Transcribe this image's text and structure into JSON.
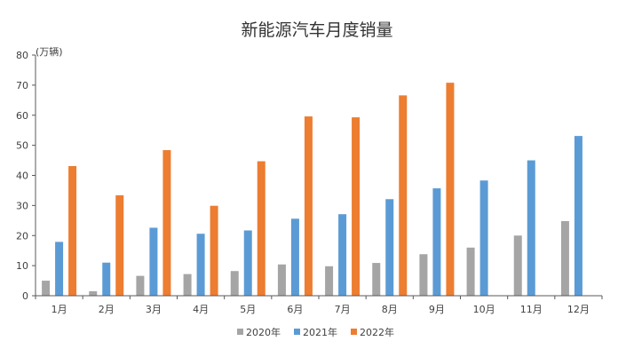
{
  "chart_data": {
    "type": "bar",
    "title": "新能源汽车月度销量",
    "ylabel": "(万辆)",
    "xlabel": "",
    "ylim": [
      0,
      80
    ],
    "yticks": [
      0,
      10,
      20,
      30,
      40,
      50,
      60,
      70,
      80
    ],
    "grid": false,
    "legend": "bottom",
    "categories": [
      "1月",
      "2月",
      "3月",
      "4月",
      "5月",
      "6月",
      "7月",
      "8月",
      "9月",
      "10月",
      "11月",
      "12月"
    ],
    "series": [
      {
        "name": "2020年",
        "color": "#a5a5a5",
        "values": [
          5.0,
          1.5,
          6.6,
          7.2,
          8.2,
          10.4,
          9.8,
          10.9,
          13.8,
          16.0,
          20.0,
          24.8
        ]
      },
      {
        "name": "2021年",
        "color": "#5b9bd5",
        "values": [
          17.9,
          11.0,
          22.6,
          20.6,
          21.7,
          25.6,
          27.1,
          32.1,
          35.7,
          38.3,
          45.0,
          53.1
        ]
      },
      {
        "name": "2022年",
        "color": "#ed7d31",
        "values": [
          43.1,
          33.4,
          48.4,
          29.9,
          44.7,
          59.6,
          59.3,
          66.6,
          70.8,
          null,
          null,
          null
        ]
      }
    ]
  }
}
